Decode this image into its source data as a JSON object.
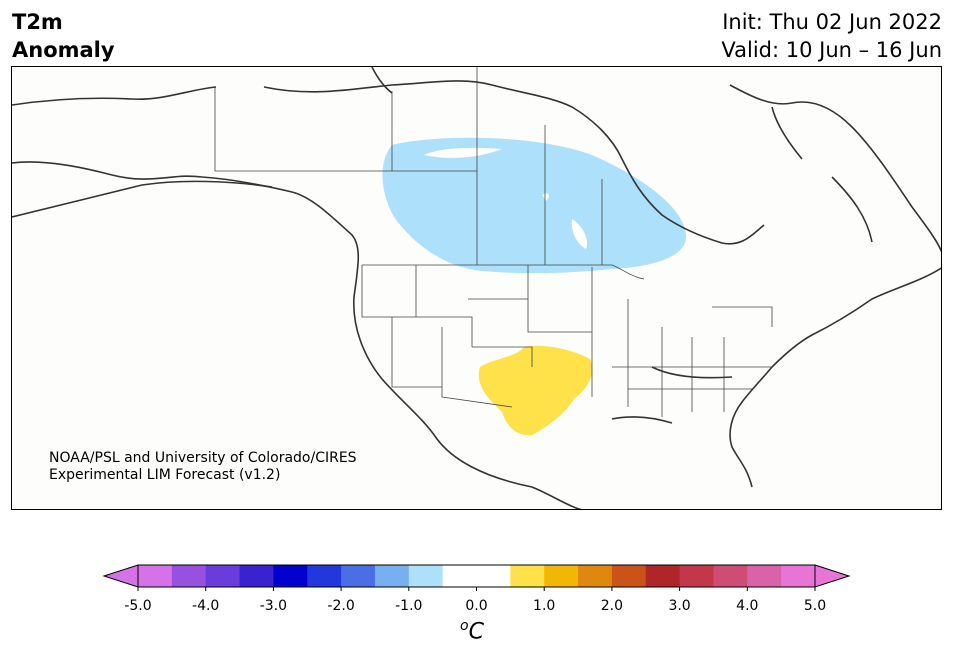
{
  "header": {
    "variable_line1": "T2m",
    "variable_line2": "Anomaly",
    "init_line": "Init: Thu 02 Jun 2022",
    "valid_line": "Valid: 10 Jun – 16 Jun"
  },
  "map": {
    "region": "North America",
    "anomalies": [
      {
        "label": "cold anomaly",
        "range_c": "-1.0 to -0.5",
        "color": "#ace0fb",
        "area": "Canadian Prairies"
      },
      {
        "label": "warm anomaly",
        "range_c": "0.5 to 1.0",
        "color": "#ffe24a",
        "area": "Southern Plains / Texas"
      }
    ]
  },
  "credit": {
    "line1": "NOAA/PSL and University of Colorado/CIRES",
    "line2": "Experimental LIM Forecast (v1.2)"
  },
  "colorbar": {
    "tick_labels": [
      "-5.0",
      "-4.0",
      "-3.0",
      "-2.0",
      "-1.0",
      "0.0",
      "1.0",
      "2.0",
      "3.0",
      "4.0",
      "5.0"
    ],
    "units_base": "C",
    "units_sup": "o",
    "colors": [
      "#d672e8",
      "#9651e0",
      "#6a3cdb",
      "#3a22d0",
      "#0200cd",
      "#2238da",
      "#4a6ee6",
      "#76b0f0",
      "#ace0fb",
      "#ffffff",
      "#ffffff",
      "#ffe24a",
      "#f2b705",
      "#df870f",
      "#c95318",
      "#af2629",
      "#c23749",
      "#cf4d74",
      "#da62a9",
      "#e875d6"
    ]
  }
}
